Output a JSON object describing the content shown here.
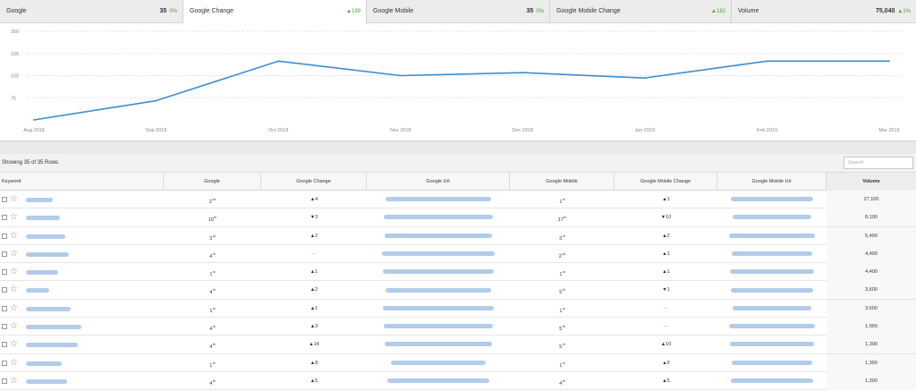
{
  "tabs": [
    {
      "label": "Google",
      "value": "35",
      "change": "0%",
      "change_color": "green",
      "active": false
    },
    {
      "label": "Google Change",
      "value": "",
      "change": "▲199",
      "change_color": "green",
      "active": true
    },
    {
      "label": "Google Mobile",
      "value": "35",
      "change": "0%",
      "change_color": "green",
      "active": false
    },
    {
      "label": "Google Mobile Change",
      "value": "",
      "change": "▲182",
      "change_color": "green",
      "active": false
    },
    {
      "label": "Volume",
      "value": "75,040",
      "change": "▲1%",
      "change_color": "green",
      "active": false
    }
  ],
  "chart_data": {
    "type": "line",
    "categories": [
      "Aug 2018",
      "Sep 2018",
      "Oct 2018",
      "Nov 2018",
      "Dec 2018",
      "Jan 2019",
      "Feb 2019",
      "Mar 2019"
    ],
    "series": [
      {
        "values": [
          0,
          65,
          199,
          150,
          160,
          142,
          199,
          199
        ],
        "color": "#3a8fd0"
      }
    ],
    "yticks": [
      "300",
      "225",
      "150",
      "75"
    ],
    "ylim": [
      0,
      300
    ],
    "grid": true
  },
  "table": {
    "rows_label": "Showing 35 of 35 Rows",
    "search_placeholder": "Search",
    "columns": [
      "Keyword",
      "Google",
      "Google Change",
      "Google Url",
      "Google Mobile",
      "Google Mobile Change",
      "Google Mobile Url",
      "Volume"
    ],
    "rows": [
      {
        "google": "2",
        "gsup": "nd",
        "gchange": "▲4",
        "gchange_dir": "up",
        "mobile": "1",
        "msup": "st",
        "mchange": "▲1",
        "mchange_dir": "up",
        "volume": "27,100"
      },
      {
        "google": "10",
        "gsup": "th",
        "gchange": "▼3",
        "gchange_dir": "down",
        "mobile": "17",
        "msup": "th",
        "mchange": "▼10",
        "mchange_dir": "down",
        "volume": "8,100"
      },
      {
        "google": "3",
        "gsup": "rd",
        "gchange": "▲2",
        "gchange_dir": "up",
        "mobile": "3",
        "msup": "rd",
        "mchange": "▲2",
        "mchange_dir": "up",
        "volume": "5,400"
      },
      {
        "google": "4",
        "gsup": "th",
        "gchange": "—",
        "gchange_dir": "none",
        "mobile": "2",
        "msup": "nd",
        "mchange": "▲1",
        "mchange_dir": "up",
        "volume": "4,400"
      },
      {
        "google": "1",
        "gsup": "st",
        "gchange": "▲1",
        "gchange_dir": "up",
        "mobile": "1",
        "msup": "st",
        "mchange": "▲1",
        "mchange_dir": "up",
        "volume": "4,400"
      },
      {
        "google": "4",
        "gsup": "th",
        "gchange": "▲2",
        "gchange_dir": "up",
        "mobile": "5",
        "msup": "th",
        "mchange": "▼1",
        "mchange_dir": "down",
        "volume": "3,600"
      },
      {
        "google": "1",
        "gsup": "st",
        "gchange": "▲1",
        "gchange_dir": "up",
        "mobile": "1",
        "msup": "st",
        "mchange": "—",
        "mchange_dir": "none",
        "volume": "3,600"
      },
      {
        "google": "4",
        "gsup": "th",
        "gchange": "▲3",
        "gchange_dir": "up",
        "mobile": "5",
        "msup": "th",
        "mchange": "—",
        "mchange_dir": "none",
        "volume": "1,900"
      },
      {
        "google": "4",
        "gsup": "th",
        "gchange": "▲14",
        "gchange_dir": "up",
        "mobile": "5",
        "msup": "th",
        "mchange": "▲10",
        "mchange_dir": "up",
        "volume": "1,300"
      },
      {
        "google": "1",
        "gsup": "st",
        "gchange": "▲8",
        "gchange_dir": "up",
        "mobile": "1",
        "msup": "st",
        "mchange": "▲9",
        "mchange_dir": "up",
        "volume": "1,300"
      },
      {
        "google": "4",
        "gsup": "th",
        "gchange": "▲5",
        "gchange_dir": "up",
        "mobile": "4",
        "msup": "th",
        "mchange": "▲5",
        "mchange_dir": "up",
        "volume": "1,300"
      }
    ]
  }
}
